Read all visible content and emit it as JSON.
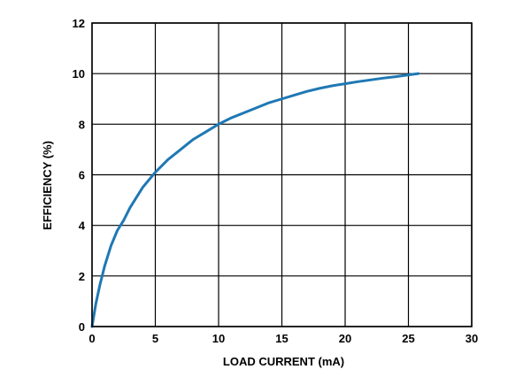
{
  "chart_data": {
    "type": "line",
    "title": "",
    "xlabel": "LOAD CURRENT (mA)",
    "ylabel": "EFFICIENCY (%)",
    "xlim": [
      0,
      30
    ],
    "ylim": [
      0,
      12
    ],
    "xticks": [
      0,
      5,
      10,
      15,
      20,
      25,
      30
    ],
    "yticks": [
      0,
      2,
      4,
      6,
      8,
      10,
      12
    ],
    "grid": true,
    "legend": "none",
    "series": [
      {
        "color": "#1f78b4",
        "x": [
          0,
          0.3,
          0.6,
          1,
          1.5,
          2,
          2.5,
          3,
          4,
          5,
          6,
          7,
          8,
          9,
          10,
          11,
          12,
          13,
          14,
          15,
          16,
          17,
          18,
          19,
          20,
          21,
          22,
          23,
          24,
          25,
          25.8
        ],
        "y": [
          0,
          0.9,
          1.6,
          2.4,
          3.2,
          3.8,
          4.2,
          4.7,
          5.5,
          6.1,
          6.6,
          7.0,
          7.4,
          7.7,
          8.0,
          8.25,
          8.45,
          8.65,
          8.85,
          9.0,
          9.15,
          9.3,
          9.42,
          9.52,
          9.6,
          9.68,
          9.75,
          9.82,
          9.88,
          9.95,
          10.0
        ]
      }
    ]
  }
}
